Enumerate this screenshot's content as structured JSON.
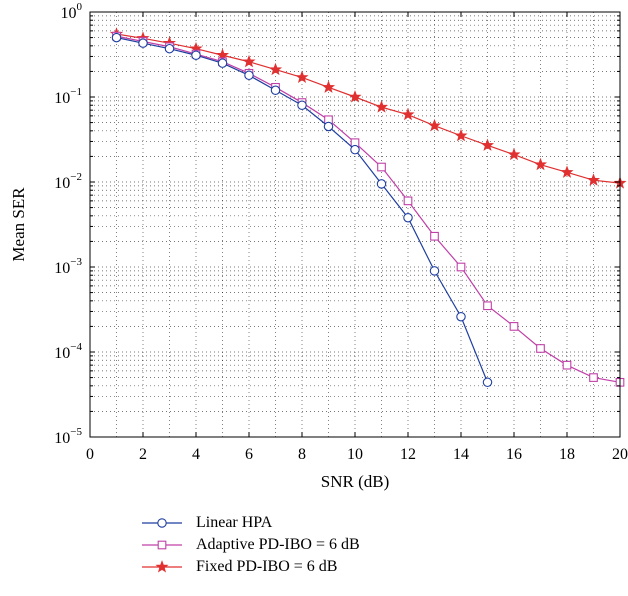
{
  "chart_data": {
    "type": "line",
    "xlabel": "SNR (dB)",
    "ylabel": "Mean SER",
    "xlim": [
      0,
      20
    ],
    "ylim": [
      1e-05,
      1
    ],
    "y_scale": "log",
    "x_ticks": [
      0,
      2,
      4,
      6,
      8,
      10,
      12,
      14,
      16,
      18,
      20
    ],
    "y_ticks": [
      {
        "base": "10",
        "exp": "0"
      },
      {
        "base": "10",
        "exp": "−1"
      },
      {
        "base": "10",
        "exp": "−2"
      },
      {
        "base": "10",
        "exp": "−3"
      },
      {
        "base": "10",
        "exp": "−4"
      },
      {
        "base": "10",
        "exp": "−5"
      }
    ],
    "grid": true,
    "legend_position": "below-left",
    "series": [
      {
        "name": "Linear HPA",
        "color": "#1f3fa0",
        "marker": "circle",
        "x": [
          1,
          2,
          3,
          4,
          5,
          6,
          7,
          8,
          9,
          10,
          11,
          12,
          13,
          14,
          15
        ],
        "values": [
          0.5,
          0.43,
          0.37,
          0.31,
          0.25,
          0.18,
          0.12,
          0.08,
          0.045,
          0.024,
          0.0095,
          0.0038,
          0.0009,
          0.00026,
          4.4e-05
        ]
      },
      {
        "name": "Adaptive PD-IBO = 6 dB",
        "color": "#c040a8",
        "marker": "square",
        "x": [
          1,
          2,
          3,
          4,
          5,
          6,
          7,
          8,
          9,
          10,
          11,
          12,
          13,
          14,
          15,
          16,
          17,
          18,
          19,
          20
        ],
        "values": [
          0.52,
          0.45,
          0.39,
          0.32,
          0.26,
          0.19,
          0.13,
          0.086,
          0.054,
          0.029,
          0.015,
          0.006,
          0.0023,
          0.001,
          0.00035,
          0.0002,
          0.00011,
          7e-05,
          5e-05,
          4.4e-05
        ]
      },
      {
        "name": "Fixed PD-IBO = 6 dB",
        "color": "#e03030",
        "marker": "star",
        "x": [
          1,
          2,
          3,
          4,
          5,
          6,
          7,
          8,
          9,
          10,
          11,
          12,
          13,
          14,
          15,
          16,
          17,
          18,
          19,
          20
        ],
        "values": [
          0.55,
          0.49,
          0.43,
          0.37,
          0.31,
          0.26,
          0.21,
          0.17,
          0.13,
          0.1,
          0.076,
          0.062,
          0.046,
          0.035,
          0.027,
          0.021,
          0.016,
          0.013,
          0.0105,
          0.0097
        ]
      }
    ]
  }
}
